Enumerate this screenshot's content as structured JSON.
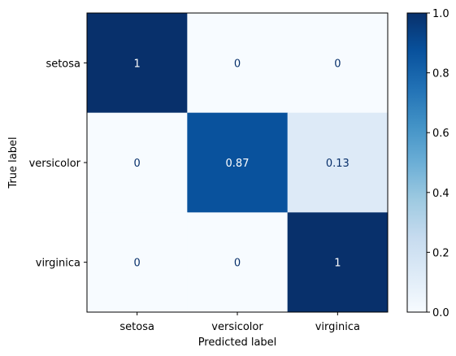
{
  "chart_data": {
    "type": "heatmap",
    "title": "",
    "xlabel": "Predicted label",
    "ylabel": "True label",
    "x_categories": [
      "setosa",
      "versicolor",
      "virginica"
    ],
    "y_categories": [
      "setosa",
      "versicolor",
      "virginica"
    ],
    "values": [
      [
        1,
        0,
        0
      ],
      [
        0,
        0.87,
        0.13
      ],
      [
        0,
        0,
        1
      ]
    ],
    "cell_labels": [
      [
        "1",
        "0",
        "0"
      ],
      [
        "0",
        "0.87",
        "0.13"
      ],
      [
        "0",
        "0",
        "1"
      ]
    ],
    "colormap": "Blues",
    "colorbar": {
      "range": [
        0,
        1
      ],
      "ticks": [
        0,
        0.2,
        0.4,
        0.6,
        0.8,
        1
      ],
      "tick_labels": [
        "0.0",
        "0.2",
        "0.4",
        "0.6",
        "0.8",
        "1.0"
      ]
    },
    "grid": false,
    "label_color_dark_bg": "#ffffff",
    "label_color_light_bg": "#08306b"
  }
}
